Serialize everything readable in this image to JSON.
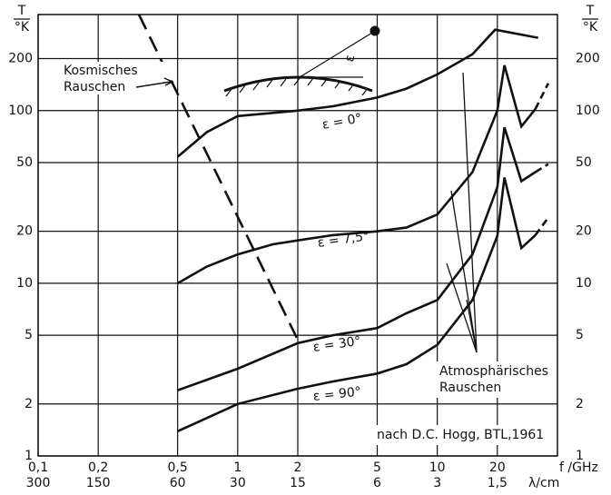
{
  "chart_data": {
    "type": "line",
    "log_x": true,
    "log_y": true,
    "grid": true,
    "color": "#111111",
    "xlim": [
      0.1,
      40
    ],
    "ylim": [
      1,
      360
    ],
    "xticks": [
      {
        "value": 0.1,
        "label": "0,1"
      },
      {
        "value": 0.2,
        "label": "0,2"
      },
      {
        "value": 0.5,
        "label": "0,5"
      },
      1,
      2,
      5,
      10,
      20
    ],
    "x2lim": [
      300,
      0.75
    ],
    "x2ticks": [
      300,
      150,
      60,
      30,
      15,
      6,
      3,
      {
        "value": 1.5,
        "label": "1,5"
      }
    ],
    "yticks": [
      1,
      2,
      5,
      10,
      20,
      50,
      100,
      200
    ],
    "y_label": {
      "top": "T",
      "bottom": "°K"
    },
    "x_label": "f /GHz",
    "x2_label": "λ/cm",
    "series": [
      {
        "name": "ε = 0°",
        "x": [
          0.5,
          0.7,
          1,
          1.5,
          2,
          3,
          5,
          7,
          10,
          15,
          19.5,
          32
        ],
        "values": [
          54,
          75,
          93,
          97,
          100,
          106,
          119,
          134,
          162,
          212,
          294,
          264
        ]
      },
      {
        "name": "ε = 7,5°",
        "x": [
          0.5,
          0.7,
          1,
          1.5,
          2,
          3,
          5,
          7,
          10,
          15,
          20,
          21.7,
          26.4,
          31
        ],
        "values": [
          10,
          12.5,
          14.7,
          16.8,
          17.7,
          19,
          20,
          21,
          25,
          44,
          100,
          183,
          81,
          102
        ],
        "dashed_tail": {
          "x": [
            31,
            36
          ],
          "values": [
            102,
            144
          ]
        }
      },
      {
        "name": "ε = 30°",
        "x": [
          0.5,
          1,
          2,
          3,
          5,
          7,
          10,
          15,
          20,
          21.7,
          26.4,
          31
        ],
        "values": [
          2.4,
          3.2,
          4.5,
          5,
          5.5,
          6.7,
          8,
          14.7,
          36,
          80,
          39,
          44
        ],
        "dashed_tail": {
          "x": [
            31,
            36
          ],
          "values": [
            44,
            49
          ]
        }
      },
      {
        "name": "ε = 90°",
        "x": [
          0.5,
          1,
          2,
          3,
          5,
          7,
          10,
          15,
          20,
          21.7,
          26.4,
          31
        ],
        "values": [
          1.39,
          2,
          2.45,
          2.7,
          3,
          3.4,
          4.4,
          8,
          18.8,
          41,
          16,
          19
        ],
        "dashed_tail": {
          "x": [
            31,
            36
          ],
          "values": [
            19,
            24
          ]
        }
      }
    ],
    "cosmic": {
      "name_lines": [
        "Kosmisches",
        "Rauschen"
      ],
      "x": [
        0.32,
        2
      ],
      "values": [
        360,
        4.7
      ],
      "style": "dashed"
    },
    "annotations": {
      "atmospheric": [
        "Atmosphärisches",
        "Rauschen"
      ],
      "source": "nach D.C. Hogg, BTL,1961",
      "inset_label": "ε"
    }
  }
}
